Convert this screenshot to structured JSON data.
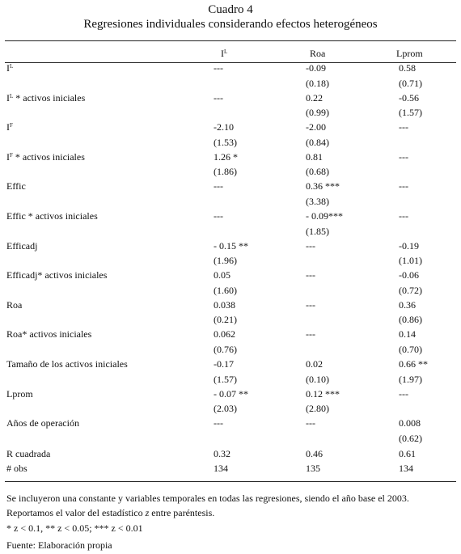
{
  "header": {
    "title": "Cuadro 4",
    "subtitle": "Regresiones individuales considerando efectos heterogéneos"
  },
  "table": {
    "columns": [
      {
        "text": "I",
        "sup": "L"
      },
      "Roa",
      "Lprom"
    ],
    "rows": [
      {
        "label": {
          "text": "I",
          "sup": "L"
        },
        "values": [
          "---",
          "-0.09",
          "0.58"
        ],
        "se": [
          null,
          "(0.18)",
          "(0.71)"
        ]
      },
      {
        "label": {
          "text": "I",
          "sup": "L",
          "rest": " * activos iniciales"
        },
        "values": [
          "---",
          "0.22",
          "-0.56"
        ],
        "se": [
          null,
          "(0.99)",
          "(1.57)"
        ]
      },
      {
        "label": {
          "text": "I",
          "sup": "F"
        },
        "values": [
          "-2.10",
          "-2.00",
          "---"
        ],
        "se": [
          "(1.53)",
          "(0.84)",
          null
        ]
      },
      {
        "label": {
          "text": "I",
          "sup": "F",
          "rest": " * activos iniciales"
        },
        "values": [
          "1.26 *",
          "0.81",
          "---"
        ],
        "se": [
          "(1.86)",
          "(0.68)",
          null
        ]
      },
      {
        "label": "Effic",
        "values": [
          "---",
          "0.36 ***",
          "---"
        ],
        "se": [
          null,
          "(3.38)",
          null
        ]
      },
      {
        "label": "Effic * activos iniciales",
        "values": [
          "---",
          "- 0.09***",
          "---"
        ],
        "se": [
          null,
          "(1.85)",
          null
        ]
      },
      {
        "label": "Efficadj",
        "values": [
          "- 0.15 **",
          "---",
          "-0.19"
        ],
        "se": [
          "(1.96)",
          null,
          "(1.01)"
        ]
      },
      {
        "label": "Efficadj* activos iniciales",
        "values": [
          "0.05",
          "---",
          "-0.06"
        ],
        "se": [
          "(1.60)",
          null,
          "(0.72)"
        ]
      },
      {
        "label": "Roa",
        "values": [
          "0.038",
          "---",
          "0.36"
        ],
        "se": [
          "(0.21)",
          null,
          "(0.86)"
        ]
      },
      {
        "label": "Roa* activos iniciales",
        "values": [
          "0.062",
          "---",
          "0.14"
        ],
        "se": [
          "(0.76)",
          null,
          "(0.70)"
        ]
      },
      {
        "label": "Tamaño de los activos iniciales",
        "values": [
          "-0.17",
          "0.02",
          "0.66 **"
        ],
        "se": [
          "(1.57)",
          "(0.10)",
          "(1.97)"
        ]
      },
      {
        "label": "Lprom",
        "values": [
          "- 0.07 **",
          "0.12 ***",
          "---"
        ],
        "se": [
          "(2.03)",
          "(2.80)",
          null
        ]
      },
      {
        "label": "Años de operación",
        "values": [
          "---",
          "---",
          "0.008"
        ],
        "se": [
          null,
          null,
          "(0.62)"
        ]
      },
      {
        "label": "R cuadrada",
        "values": [
          "0.32",
          "0.46",
          "0.61"
        ]
      },
      {
        "label": "# obs",
        "values": [
          "134",
          "135",
          "134"
        ]
      }
    ]
  },
  "notes": [
    [
      "Se incluyeron una constante y variables temporales en todas las regresiones, siendo el año base el 2003. Reportamos el valor del estadístico ",
      "z",
      " entre paréntesis."
    ],
    [
      "* z < 0.1, ** z < 0.05; *** z < 0.01"
    ],
    [
      "Fuente: Elaboración propia"
    ]
  ]
}
